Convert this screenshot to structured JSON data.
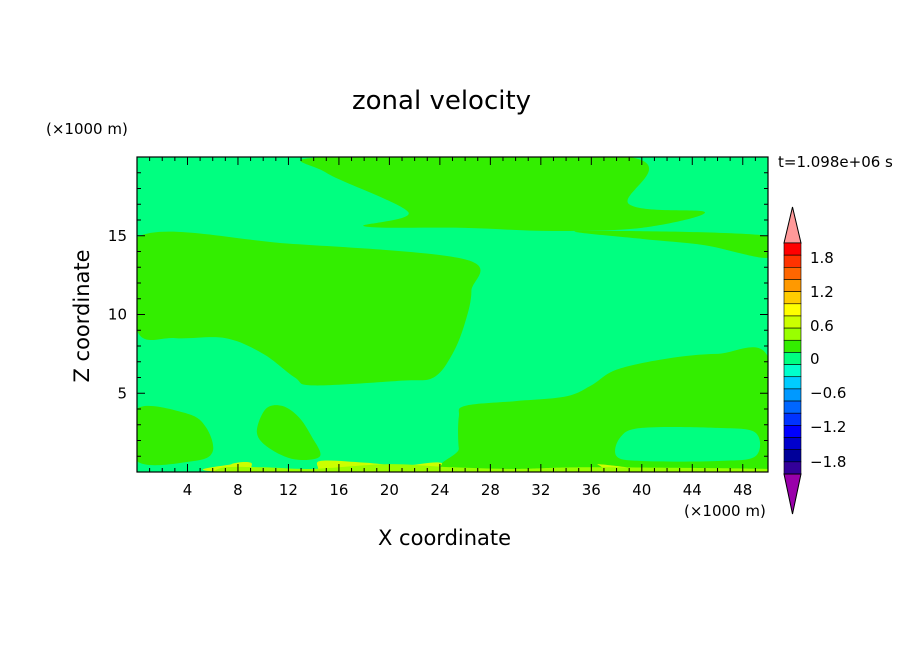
{
  "chart_data": {
    "type": "heatmap",
    "title": "zonal velocity",
    "xlabel": "X coordinate",
    "ylabel": "Z coordinate",
    "x_unit": "(×1000 m)",
    "y_unit": "(×1000 m)",
    "time_label": "t=1.098e+06 s",
    "xlim": [
      0,
      50
    ],
    "ylim": [
      0,
      20
    ],
    "x_ticks": [
      4,
      8,
      12,
      16,
      20,
      24,
      28,
      32,
      36,
      40,
      44,
      48
    ],
    "y_ticks": [
      5,
      10,
      15
    ],
    "background_level_color": "#00ff80",
    "colorbar": {
      "levels": [
        -1.8,
        -1.2,
        -0.6,
        0,
        0.6,
        1.2,
        1.8
      ],
      "tick_labels": [
        "1.8",
        "1.2",
        "0.6",
        "0",
        "−0.6",
        "−1.2",
        "−1.8"
      ],
      "colors_top_to_bottom": [
        "#ff9999",
        "#ff0000",
        "#ff3300",
        "#ff6600",
        "#ff9900",
        "#ffcc00",
        "#ffff00",
        "#ccff00",
        "#99ff00",
        "#33ee00",
        "#00ff80",
        "#00ffcc",
        "#00ccff",
        "#0099ff",
        "#0066ff",
        "#0033ff",
        "#0000ff",
        "#0000cc",
        "#000099",
        "#330099",
        "#9900aa"
      ]
    },
    "regions": [
      {
        "label": "upper-center positive region",
        "color": "#33ee00",
        "points": [
          [
            15,
            20
          ],
          [
            39,
            20
          ],
          [
            39,
            17
          ],
          [
            45,
            16.5
          ],
          [
            40,
            15.5
          ],
          [
            33,
            15.3
          ],
          [
            26,
            15.5
          ],
          [
            18,
            15.6
          ],
          [
            21.5,
            16.5
          ],
          [
            15,
            19
          ]
        ]
      },
      {
        "label": "upper-right positive region",
        "color": "#33ee00",
        "points": [
          [
            35,
            15.3
          ],
          [
            50,
            15
          ],
          [
            50,
            13.6
          ],
          [
            45,
            14.4
          ],
          [
            40,
            14.8
          ]
        ]
      },
      {
        "label": "mid-left positive region",
        "color": "#33ee00",
        "points": [
          [
            0,
            14.9
          ],
          [
            12,
            14.5
          ],
          [
            26,
            13.5
          ],
          [
            26.5,
            11.5
          ],
          [
            26,
            9.5
          ],
          [
            25,
            7.5
          ],
          [
            23.5,
            6
          ],
          [
            21,
            5.8
          ],
          [
            14,
            5.5
          ],
          [
            12.5,
            6
          ],
          [
            10,
            7.5
          ],
          [
            7,
            8.5
          ],
          [
            3,
            8.5
          ],
          [
            0,
            9
          ]
        ]
      },
      {
        "label": "lower-right positive region",
        "color": "#33ee00",
        "points": [
          [
            26,
            4.2
          ],
          [
            30,
            4.5
          ],
          [
            34,
            4.8
          ],
          [
            36,
            5.5
          ],
          [
            38,
            6.5
          ],
          [
            42,
            7.2
          ],
          [
            46,
            7.5
          ],
          [
            50,
            7.3
          ],
          [
            50,
            0
          ],
          [
            26,
            0
          ],
          [
            25.5,
            1.5
          ],
          [
            25.5,
            3.5
          ]
        ]
      },
      {
        "label": "lower-left positive region",
        "color": "#33ee00",
        "points": [
          [
            0,
            4
          ],
          [
            4,
            3.7
          ],
          [
            5.5,
            2.8
          ],
          [
            6,
            1.3
          ],
          [
            4.5,
            0.7
          ],
          [
            0,
            0.7
          ]
        ]
      },
      {
        "label": "small lower-center positive blob",
        "color": "#33ee00",
        "points": [
          [
            9.5,
            2.5
          ],
          [
            10.2,
            4
          ],
          [
            11.5,
            4.2
          ],
          [
            12.8,
            3.5
          ],
          [
            13.8,
            2.3
          ],
          [
            14.5,
            1
          ],
          [
            12.5,
            0.8
          ],
          [
            10.5,
            1.5
          ]
        ]
      },
      {
        "label": "lower-right negative pocket",
        "color": "#00ff80",
        "points": [
          [
            38,
            1
          ],
          [
            38.3,
            2.2
          ],
          [
            40,
            2.8
          ],
          [
            46,
            2.8
          ],
          [
            49,
            2.5
          ],
          [
            49,
            1
          ],
          [
            46,
            0.7
          ],
          [
            40,
            0.7
          ]
        ]
      },
      {
        "label": "bottom yellow-green strip",
        "color": "#ccff00",
        "points": [
          [
            7.5,
            0
          ],
          [
            7.5,
            0.5
          ],
          [
            9,
            0.6
          ],
          [
            9.5,
            0
          ],
          [
            14,
            0
          ],
          [
            14.5,
            0.7
          ],
          [
            18,
            0.6
          ],
          [
            21,
            0.4
          ],
          [
            24,
            0.6
          ],
          [
            25,
            0
          ],
          [
            36,
            0
          ],
          [
            36.5,
            0.5
          ],
          [
            37.5,
            0
          ]
        ]
      },
      {
        "label": "bottom ground strip",
        "color": "#99ff00",
        "points": [
          [
            6,
            0
          ],
          [
            7,
            0.3
          ],
          [
            10,
            0.3
          ],
          [
            14,
            0.2
          ],
          [
            20,
            0.5
          ],
          [
            25,
            0.3
          ],
          [
            30,
            0.2
          ],
          [
            36,
            0.3
          ],
          [
            50,
            0.2
          ],
          [
            50,
            0
          ],
          [
            6,
            0
          ]
        ]
      }
    ]
  }
}
